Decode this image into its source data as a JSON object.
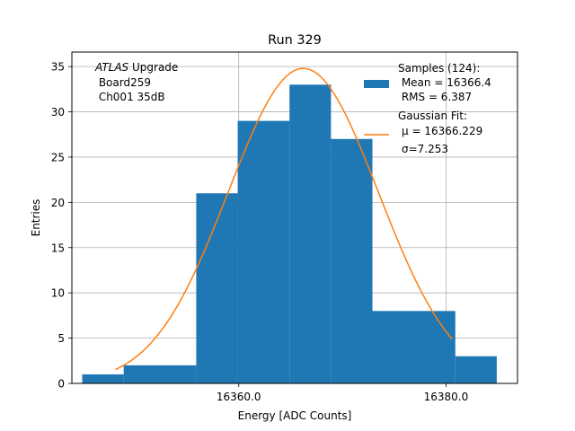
{
  "chart_data": {
    "type": "bar",
    "title": "Run 329",
    "xlabel": "Energy [ADC Counts]",
    "ylabel": "Entries",
    "xlim": [
      16343.9,
      16386.9
    ],
    "ylim": [
      0,
      36.6
    ],
    "grid": true,
    "x_ticks": [
      {
        "value": 16360,
        "label": "16360.0"
      },
      {
        "value": 16380,
        "label": "16380.0"
      }
    ],
    "y_ticks": [
      {
        "value": 0,
        "label": "0"
      },
      {
        "value": 5,
        "label": "5"
      },
      {
        "value": 10,
        "label": "10"
      },
      {
        "value": 15,
        "label": "15"
      },
      {
        "value": 20,
        "label": "20"
      },
      {
        "value": 25,
        "label": "25"
      },
      {
        "value": 30,
        "label": "30"
      },
      {
        "value": 35,
        "label": "35"
      }
    ],
    "bins": [
      {
        "x0": 16344.9,
        "x1": 16348.9,
        "count": 1
      },
      {
        "x0": 16348.9,
        "x1": 16355.9,
        "count": 2
      },
      {
        "x0": 16355.9,
        "x1": 16359.9,
        "count": 21
      },
      {
        "x0": 16359.9,
        "x1": 16364.9,
        "count": 29
      },
      {
        "x0": 16364.9,
        "x1": 16368.9,
        "count": 33
      },
      {
        "x0": 16368.9,
        "x1": 16372.9,
        "count": 27
      },
      {
        "x0": 16372.9,
        "x1": 16380.9,
        "count": 8
      },
      {
        "x0": 16380.9,
        "x1": 16384.9,
        "count": 3
      }
    ],
    "fit": {
      "amplitude": 34.8,
      "mu": 16366.229,
      "sigma": 7.253,
      "x_range": [
        16348.1,
        16380.6
      ]
    },
    "legend": {
      "position": "top-right",
      "entries": [
        {
          "series": "histogram",
          "lines": [
            "Samples (124):",
            " Mean = 16366.4",
            " RMS = 6.387"
          ]
        },
        {
          "series": "fit",
          "lines": [
            "Gaussian Fit:",
            "μ = 16366.229",
            "σ=7.253"
          ]
        }
      ]
    },
    "annotation": {
      "position": "top-left",
      "italic_word": "ATLAS",
      "first_line_rest": " Upgrade",
      "lines": [
        " Board259",
        " Ch001 35dB"
      ]
    },
    "colors": {
      "bars": "#1f77b4",
      "fit": "#ff7f0e",
      "grid": "#b0b0b0",
      "axes": "#000000"
    }
  }
}
